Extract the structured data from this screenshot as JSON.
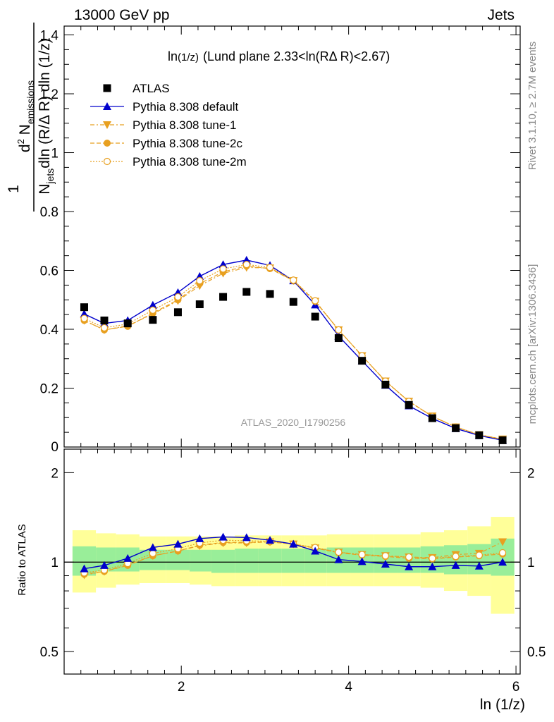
{
  "header": {
    "left": "13000 GeV pp",
    "right": "Jets"
  },
  "side_labels": {
    "rivet": "Rivet 3.1.10, ≥ 2.7M events",
    "mcplots": "mcplots.cern.ch [arXiv:1306.3436]"
  },
  "watermark": "ATLAS_2020_I1790256",
  "colors": {
    "atlas": "#000000",
    "default": "#0000cc",
    "tunes": "#e8a020",
    "band_inner": "#99ee99",
    "band_outer": "#ffff99"
  },
  "chart_data": [
    {
      "type": "scatter",
      "title": "ln(1/z) (Lund plane 2.33<ln(RΔ R)<2.67)",
      "title_main": "ln",
      "title_sub": "(1/z)",
      "title_rest": "(Lund plane 2.33<ln(RΔ R)<2.67)",
      "xlabel": "ln (1/z)",
      "ylabel": "1/N_jets dN_emissions/dln(R/ΔR) dln(1/z)",
      "xlim": [
        0.6,
        6.05
      ],
      "ylim": [
        0,
        1.43
      ],
      "y_ticks": [
        "0.2",
        "0.4",
        "0.6",
        "0.8",
        "1",
        "1.2",
        "1.4"
      ],
      "y_zero_label": "0",
      "legend_position": "top-left",
      "x": [
        0.84,
        1.08,
        1.36,
        1.66,
        1.96,
        2.22,
        2.5,
        2.78,
        3.06,
        3.34,
        3.6,
        3.88,
        4.16,
        4.44,
        4.72,
        5.0,
        5.28,
        5.56,
        5.84
      ],
      "series": [
        {
          "name": "ATLAS",
          "marker": "square",
          "values": [
            0.475,
            0.43,
            0.42,
            0.432,
            0.458,
            0.485,
            0.51,
            0.527,
            0.52,
            0.493,
            0.443,
            0.37,
            0.293,
            0.212,
            0.143,
            0.098,
            0.064,
            0.04,
            0.023
          ]
        },
        {
          "name": "Pythia 8.308 default",
          "marker": "triangle-up",
          "values": [
            0.452,
            0.42,
            0.43,
            0.482,
            0.525,
            0.58,
            0.62,
            0.635,
            0.617,
            0.565,
            0.483,
            0.377,
            0.293,
            0.21,
            0.14,
            0.097,
            0.063,
            0.039,
            0.023
          ]
        },
        {
          "name": "Pythia 8.308 tune-1",
          "marker": "triangle-down",
          "values": [
            0.43,
            0.398,
            0.412,
            0.452,
            0.497,
            0.548,
            0.59,
            0.61,
            0.608,
            0.565,
            0.495,
            0.398,
            0.31,
            0.224,
            0.155,
            0.105,
            0.068,
            0.042,
            0.027
          ]
        },
        {
          "name": "Pythia 8.308 tune-2c",
          "marker": "circle",
          "values": [
            0.43,
            0.398,
            0.41,
            0.455,
            0.5,
            0.555,
            0.595,
            0.615,
            0.606,
            0.565,
            0.495,
            0.398,
            0.31,
            0.224,
            0.155,
            0.104,
            0.068,
            0.042,
            0.026
          ]
        },
        {
          "name": "Pythia 8.308 tune-2m",
          "marker": "circle-open",
          "values": [
            0.437,
            0.405,
            0.418,
            0.465,
            0.51,
            0.565,
            0.605,
            0.62,
            0.61,
            0.567,
            0.497,
            0.398,
            0.31,
            0.224,
            0.155,
            0.104,
            0.068,
            0.042,
            0.026
          ]
        }
      ]
    },
    {
      "type": "line",
      "ylabel": "Ratio to ATLAS",
      "ylim": [
        0.42,
        2.4
      ],
      "y_scale": "log",
      "y_ticks": [
        "0.5",
        "1",
        "2"
      ],
      "x_ticks": [
        "2",
        "4",
        "6"
      ],
      "bin_edges": [
        0.7,
        0.98,
        1.22,
        1.5,
        1.82,
        2.1,
        2.36,
        2.64,
        2.92,
        3.2,
        3.48,
        3.74,
        4.02,
        4.3,
        4.58,
        4.86,
        5.14,
        5.42,
        5.7,
        5.98
      ],
      "band_inner": [
        [
          0.9,
          1.13
        ],
        [
          0.93,
          1.12
        ],
        [
          0.93,
          1.12
        ],
        [
          0.94,
          1.1
        ],
        [
          0.94,
          1.1
        ],
        [
          0.93,
          1.1
        ],
        [
          0.92,
          1.1
        ],
        [
          0.92,
          1.11
        ],
        [
          0.92,
          1.11
        ],
        [
          0.92,
          1.11
        ],
        [
          0.92,
          1.11
        ],
        [
          0.92,
          1.12
        ],
        [
          0.92,
          1.12
        ],
        [
          0.92,
          1.12
        ],
        [
          0.92,
          1.12
        ],
        [
          0.92,
          1.13
        ],
        [
          0.91,
          1.14
        ],
        [
          0.91,
          1.15
        ],
        [
          0.9,
          1.2
        ]
      ],
      "band_outer": [
        [
          0.79,
          1.28
        ],
        [
          0.82,
          1.25
        ],
        [
          0.84,
          1.24
        ],
        [
          0.85,
          1.22
        ],
        [
          0.85,
          1.22
        ],
        [
          0.84,
          1.22
        ],
        [
          0.83,
          1.22
        ],
        [
          0.83,
          1.23
        ],
        [
          0.83,
          1.23
        ],
        [
          0.83,
          1.23
        ],
        [
          0.83,
          1.23
        ],
        [
          0.83,
          1.24
        ],
        [
          0.83,
          1.24
        ],
        [
          0.83,
          1.24
        ],
        [
          0.83,
          1.24
        ],
        [
          0.82,
          1.26
        ],
        [
          0.8,
          1.28
        ],
        [
          0.77,
          1.32
        ],
        [
          0.67,
          1.42
        ]
      ],
      "series": [
        {
          "name": "Pythia 8.308 default",
          "values": [
            0.95,
            0.975,
            1.03,
            1.12,
            1.15,
            1.2,
            1.215,
            1.21,
            1.185,
            1.15,
            1.09,
            1.02,
            1.005,
            0.985,
            0.965,
            0.965,
            0.975,
            0.97,
            1.0
          ]
        },
        {
          "name": "Pythia 8.308 tune-1",
          "values": [
            0.905,
            0.93,
            0.98,
            1.05,
            1.09,
            1.135,
            1.16,
            1.16,
            1.17,
            1.15,
            1.115,
            1.08,
            1.06,
            1.05,
            1.04,
            1.035,
            1.06,
            1.07,
            1.17
          ]
        },
        {
          "name": "Pythia 8.308 tune-2c",
          "values": [
            0.91,
            0.93,
            0.975,
            1.05,
            1.09,
            1.14,
            1.165,
            1.165,
            1.17,
            1.15,
            1.115,
            1.075,
            1.055,
            1.045,
            1.03,
            1.025,
            1.04,
            1.05,
            1.065
          ]
        },
        {
          "name": "Pythia 8.308 tune-2m",
          "values": [
            0.92,
            0.94,
            0.99,
            1.07,
            1.11,
            1.16,
            1.185,
            1.18,
            1.175,
            1.15,
            1.12,
            1.08,
            1.06,
            1.05,
            1.04,
            1.03,
            1.045,
            1.055,
            1.075
          ]
        }
      ]
    }
  ]
}
